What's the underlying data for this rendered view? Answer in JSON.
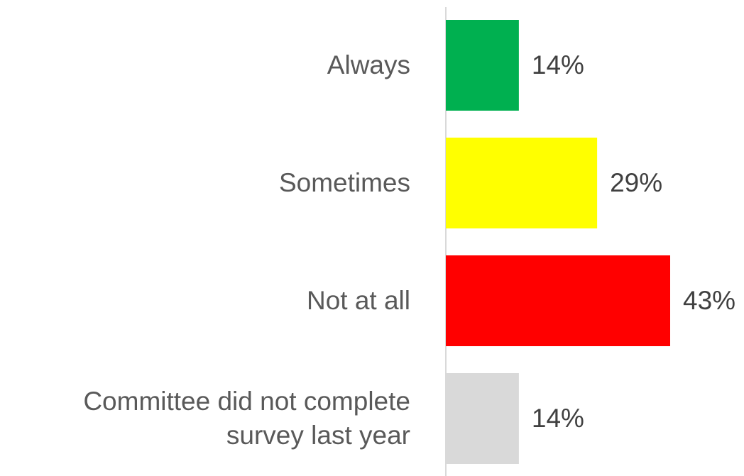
{
  "chart_data": {
    "type": "bar",
    "orientation": "horizontal",
    "categories": [
      "Always",
      "Sometimes",
      "Not at all",
      "Committee did not complete\nsurvey last year"
    ],
    "values": [
      14,
      29,
      43,
      14
    ],
    "value_labels": [
      "14%",
      "29%",
      "43%",
      "14%"
    ],
    "colors": [
      "#00b050",
      "#ffff00",
      "#ff0000",
      "#d9d9d9"
    ],
    "unit": "%",
    "xlim": [
      0,
      43
    ],
    "grid": false,
    "legend": "none",
    "title": "",
    "xlabel": "",
    "ylabel": ""
  }
}
